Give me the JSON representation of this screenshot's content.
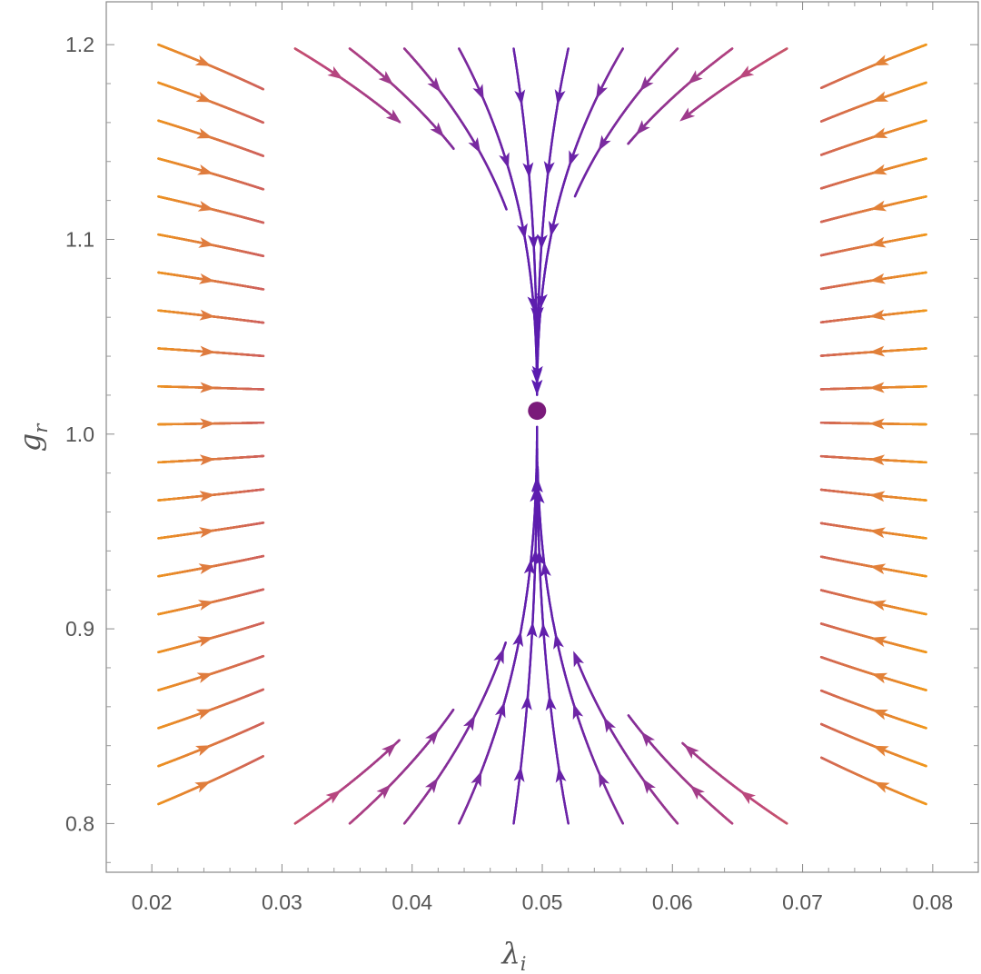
{
  "chart_data": {
    "type": "streamplot",
    "xlabel": "λ",
    "xlabel_sub": "i",
    "ylabel": "g",
    "ylabel_sub": "r",
    "xlim": [
      0.0165,
      0.0835
    ],
    "ylim": [
      0.775,
      1.222
    ],
    "x_ticks": [
      {
        "value": 0.02,
        "label": "0.02"
      },
      {
        "value": 0.03,
        "label": "0.03"
      },
      {
        "value": 0.04,
        "label": "0.04"
      },
      {
        "value": 0.05,
        "label": "0.05"
      },
      {
        "value": 0.06,
        "label": "0.06"
      },
      {
        "value": 0.07,
        "label": "0.07"
      },
      {
        "value": 0.08,
        "label": "0.08"
      }
    ],
    "y_ticks": [
      {
        "value": 0.8,
        "label": "0.8"
      },
      {
        "value": 0.9,
        "label": "0.9"
      },
      {
        "value": 1.0,
        "label": "1.0"
      },
      {
        "value": 1.1,
        "label": "1.1"
      },
      {
        "value": 1.2,
        "label": "1.2"
      }
    ],
    "fixed_point": {
      "x": 0.0496,
      "y": 1.012,
      "color": "#7a1a7a"
    },
    "colors": {
      "slow": "#5a1cb0",
      "mid": "#c04a7a",
      "fast": "#ffb000"
    },
    "grid": false,
    "frame": true
  }
}
